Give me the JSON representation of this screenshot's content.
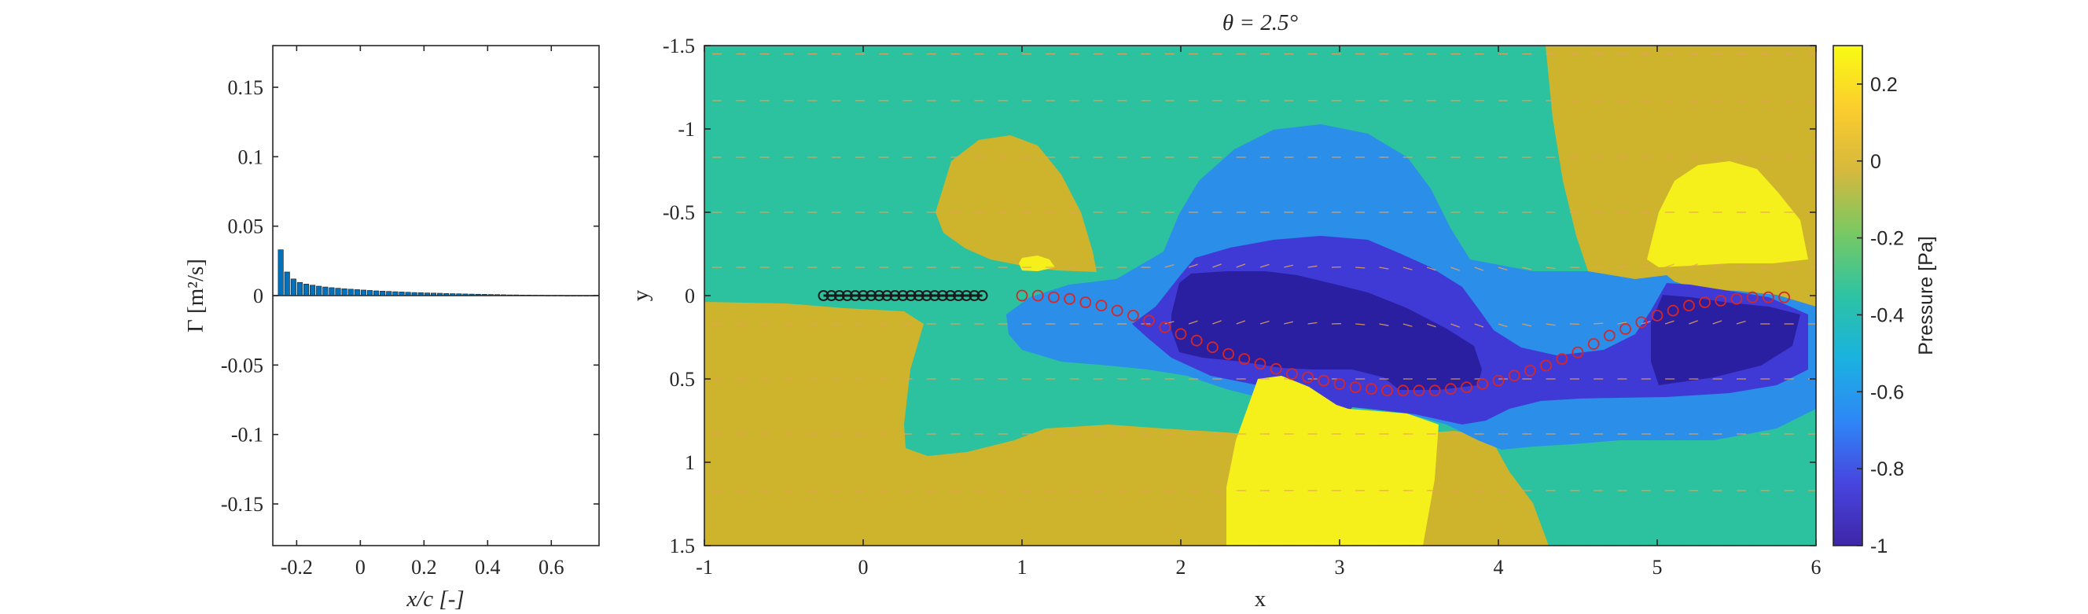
{
  "chart_data": [
    {
      "type": "bar",
      "xlabel": "x/c [-]",
      "ylabel": "Γ [m²/s]",
      "xlim": [
        -0.275,
        0.75
      ],
      "ylim": [
        -0.18,
        0.18
      ],
      "x_ticks": [
        "-0.2",
        "0",
        "0.2",
        "0.4",
        "0.6"
      ],
      "y_ticks": [
        "0.15",
        "0.1",
        "0.05",
        "0",
        "-0.05",
        "-0.1",
        "-0.15"
      ],
      "bar_color": "#0072BD",
      "x": [
        -0.25,
        -0.23,
        -0.21,
        -0.19,
        -0.17,
        -0.15,
        -0.13,
        -0.11,
        -0.09,
        -0.07,
        -0.05,
        -0.03,
        -0.01,
        0.01,
        0.03,
        0.05,
        0.07,
        0.09,
        0.11,
        0.13,
        0.15,
        0.17,
        0.19,
        0.21,
        0.23,
        0.25,
        0.27,
        0.29,
        0.31,
        0.33,
        0.35,
        0.37,
        0.39,
        0.41,
        0.43,
        0.45,
        0.47,
        0.49,
        0.51,
        0.53,
        0.55,
        0.57,
        0.59,
        0.61,
        0.63,
        0.65,
        0.67,
        0.69,
        0.71,
        0.73
      ],
      "values": [
        0.033,
        0.017,
        0.012,
        0.0095,
        0.0083,
        0.0075,
        0.0068,
        0.0062,
        0.0057,
        0.0053,
        0.0049,
        0.0046,
        0.0043,
        0.004,
        0.0037,
        0.0034,
        0.0032,
        0.003,
        0.0028,
        0.0026,
        0.0024,
        0.0022,
        0.0021,
        0.0019,
        0.0018,
        0.0017,
        0.0015,
        0.0014,
        0.0013,
        0.0012,
        0.0011,
        0.001,
        0.0009,
        0.0008,
        0.0007,
        0.0006,
        0.0005,
        0.0005,
        0.0004,
        0.0004,
        0.0003,
        0.0003,
        0.0002,
        0.0002,
        0.0002,
        0.0001,
        0.0001,
        0.0001,
        0.0001,
        0.0001
      ]
    },
    {
      "type": "heatmap",
      "title": "θ = 2.5°",
      "xlabel": "x",
      "ylabel": "y",
      "xlim": [
        -1,
        6
      ],
      "ylim": [
        -1.5,
        1.5
      ],
      "y_reversed": true,
      "x_ticks": [
        "-1",
        "0",
        "1",
        "2",
        "3",
        "4",
        "5",
        "6"
      ],
      "y_ticks": [
        "-1.5",
        "-1",
        "-0.5",
        "0",
        "0.5",
        "1",
        "1.5"
      ],
      "colorbar": {
        "label": "Pressure [Pa]",
        "range": [
          -1,
          0.3
        ],
        "ticks": [
          "0.2",
          "0",
          "-0.2",
          "-0.4",
          "-0.6",
          "-0.8",
          "-1"
        ],
        "colormap": [
          "#3e26a8",
          "#4745e0",
          "#2e87f7",
          "#1ab2df",
          "#2dc3a3",
          "#78c962",
          "#d6b83d",
          "#fbcd2e",
          "#f9fb14"
        ]
      },
      "level_colors": {
        "l1": "#2a1fa0",
        "l2": "#3f3ad6",
        "l3": "#2b8ee8",
        "l4": "#2cc19f",
        "l5": "#cdb42c",
        "l6": "#f5ef1c"
      },
      "plate_color": "#1a1a1a",
      "wake_marker_color": "#d62728",
      "arrow_color": "#e8a35a",
      "plate_x": [
        -0.25,
        -0.2,
        -0.15,
        -0.1,
        -0.05,
        0,
        0.05,
        0.1,
        0.15,
        0.2,
        0.25,
        0.3,
        0.35,
        0.4,
        0.45,
        0.5,
        0.55,
        0.6,
        0.65,
        0.7,
        0.75
      ],
      "plate_y": [
        0,
        0,
        0,
        0,
        0,
        0,
        0,
        0,
        0,
        0,
        0,
        0,
        0,
        0,
        0,
        0,
        0,
        0,
        0,
        0,
        0
      ],
      "wake_x": [
        1.0,
        1.1,
        1.2,
        1.3,
        1.4,
        1.5,
        1.6,
        1.7,
        1.8,
        1.9,
        2.0,
        2.1,
        2.2,
        2.3,
        2.4,
        2.5,
        2.6,
        2.7,
        2.8,
        2.9,
        3.0,
        3.1,
        3.2,
        3.3,
        3.4,
        3.5,
        3.6,
        3.7,
        3.8,
        3.9,
        4.0,
        4.1,
        4.2,
        4.3,
        4.4,
        4.5,
        4.6,
        4.7,
        4.8,
        4.9,
        5.0,
        5.1,
        5.2,
        5.3,
        5.4,
        5.5,
        5.6,
        5.7,
        5.8
      ],
      "wake_y": [
        0.0,
        0.0,
        0.01,
        0.02,
        0.04,
        0.06,
        0.09,
        0.12,
        0.15,
        0.19,
        0.23,
        0.27,
        0.31,
        0.35,
        0.38,
        0.41,
        0.44,
        0.47,
        0.49,
        0.51,
        0.53,
        0.55,
        0.56,
        0.57,
        0.57,
        0.57,
        0.57,
        0.56,
        0.55,
        0.53,
        0.51,
        0.48,
        0.45,
        0.42,
        0.38,
        0.34,
        0.29,
        0.24,
        0.2,
        0.16,
        0.12,
        0.09,
        0.06,
        0.04,
        0.03,
        0.02,
        0.01,
        0.01,
        0.01
      ]
    }
  ]
}
